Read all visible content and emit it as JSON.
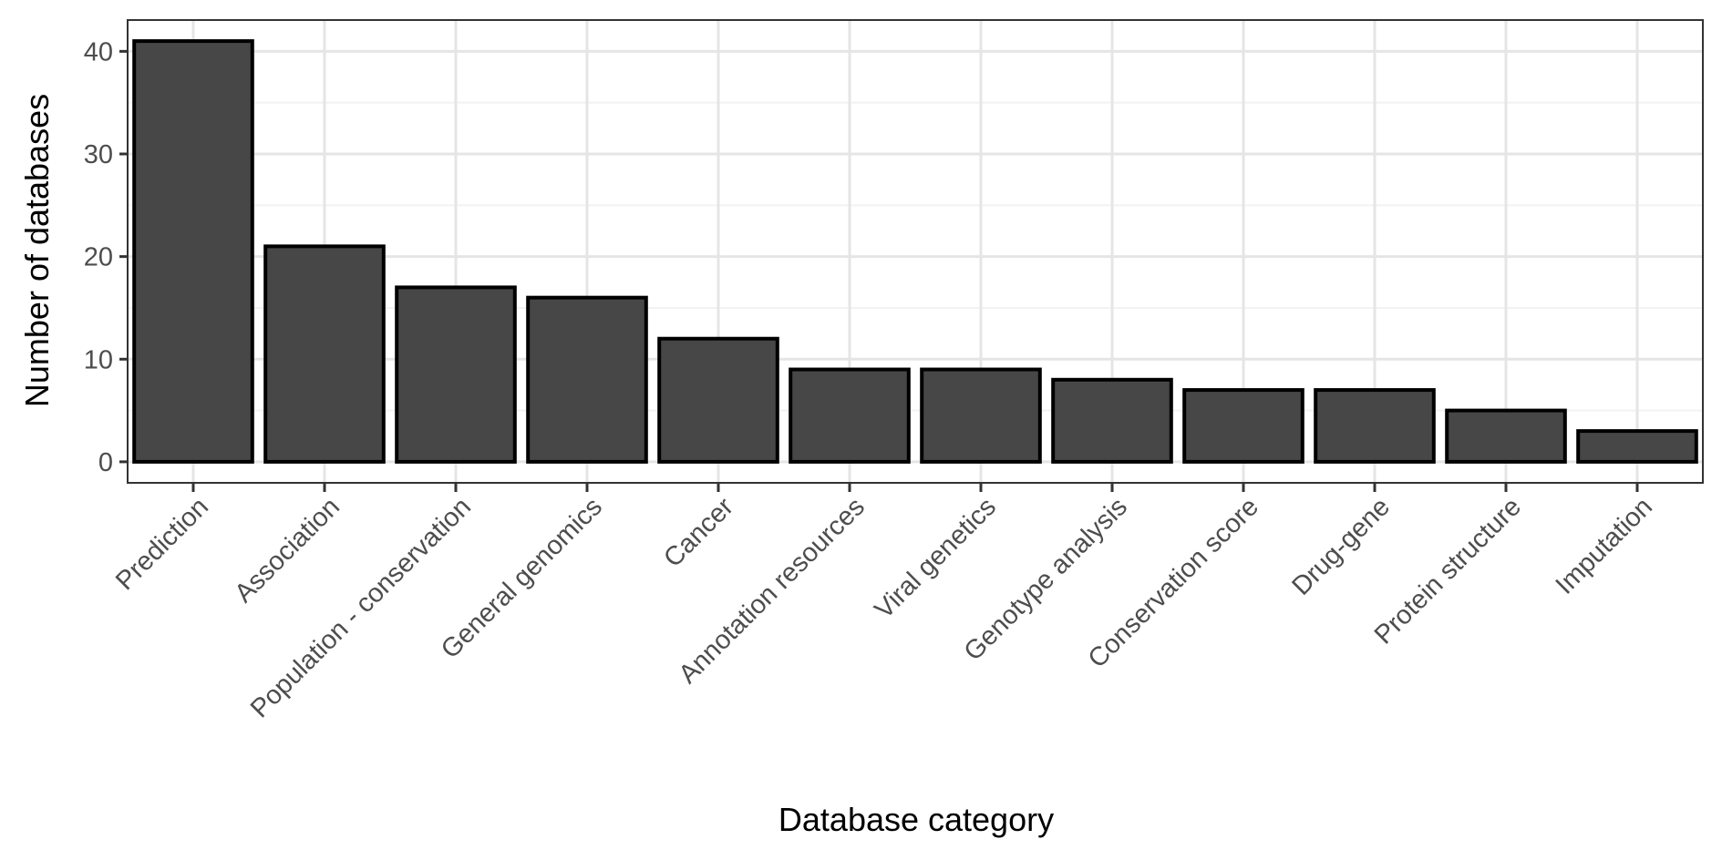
{
  "chart_data": {
    "type": "bar",
    "title": "",
    "xlabel": "Database category",
    "ylabel": "Number of databases",
    "categories": [
      "Prediction",
      "Association",
      "Population - conservation",
      "General genomics",
      "Cancer",
      "Annotation resources",
      "Viral genetics",
      "Genotype analysis",
      "Conservation score",
      "Drug-gene",
      "Protein structure",
      "Imputation"
    ],
    "values": [
      41,
      21,
      17,
      16,
      12,
      9,
      9,
      8,
      7,
      7,
      5,
      3
    ],
    "ylim": [
      -2.05,
      43.05
    ],
    "yticks": [
      0,
      10,
      20,
      30,
      40
    ],
    "grid": true,
    "legend": "none",
    "colors": {
      "bar_fill": "#474747",
      "bar_stroke": "#000000",
      "grid_major": "#e5e5e5",
      "grid_minor": "#f2f2f2",
      "panel_border": "#333333",
      "tick_text": "#4d4d4d"
    }
  }
}
